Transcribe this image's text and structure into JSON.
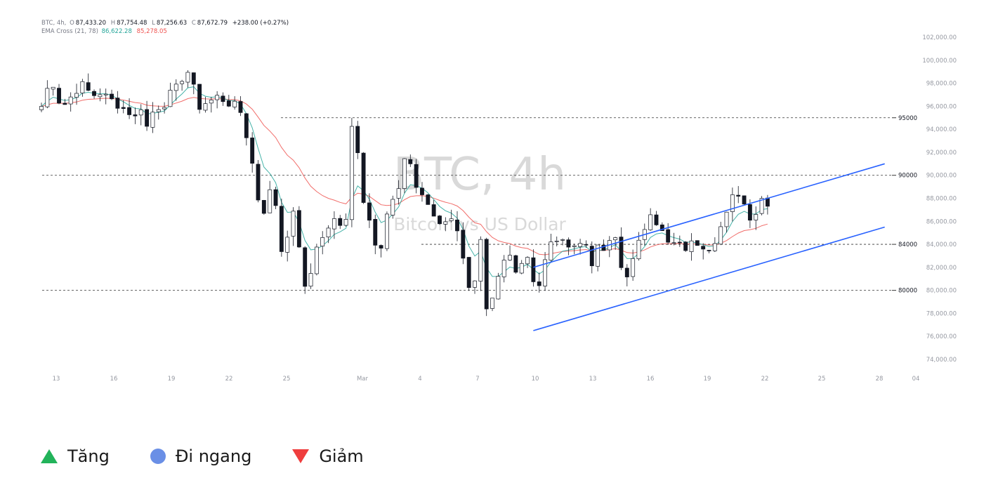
{
  "header": {
    "line1": {
      "symbol": "BTC, 4h,",
      "o_label": "O",
      "o": "87,433.20",
      "h_label": "H",
      "h": "87,754.48",
      "l_label": "L",
      "l": "87,256.63",
      "c_label": "C",
      "c": "87,672.79",
      "change": "+238.00 (+0.27%)"
    },
    "line2": {
      "indicator": "EMA Cross (21, 78)",
      "ema_fast": "86,622.28",
      "ema_slow": "85,278.05"
    }
  },
  "watermark": {
    "main": "BTC, 4h",
    "sub": "Bitcoin vs US Dollar"
  },
  "colors": {
    "ema_fast": "#26a69a",
    "ema_slow": "#ef5350",
    "channel": "#2962ff",
    "candle": "#131722",
    "legend_up": "#22b35a",
    "legend_side": "#6a8fe6",
    "legend_down": "#ef3e3e"
  },
  "chart_data": {
    "type": "candlestick",
    "ylim": [
      74000,
      102000
    ],
    "y_ticks": [
      "102,000.00",
      "100,000.00",
      "98,000.00",
      "96,000.00",
      "94,000.00",
      "92,000.00",
      "90,000.00",
      "88,000.00",
      "86,000.00",
      "84,000.00",
      "82,000.00",
      "80,000.00",
      "78,000.00",
      "76,000.00",
      "74,000.00"
    ],
    "x_tick_labels": [
      "13",
      "16",
      "19",
      "22",
      "25",
      "Mar",
      "4",
      "7",
      "10",
      "13",
      "16",
      "19",
      "22",
      "25",
      "28",
      "04"
    ],
    "levels": [
      {
        "label": "95000",
        "value": 95000
      },
      {
        "label": "90000",
        "value": 90000
      },
      {
        "label": "84000",
        "value": 84000
      },
      {
        "label": "80000",
        "value": 80000
      }
    ],
    "close_path": [
      [
        0,
        96000
      ],
      [
        1,
        97500
      ],
      [
        2,
        98000
      ],
      [
        3,
        96500
      ],
      [
        4,
        96200
      ],
      [
        5,
        96800
      ],
      [
        6,
        97500
      ],
      [
        7,
        97800
      ],
      [
        8,
        97300
      ],
      [
        9,
        97000
      ],
      [
        10,
        97200
      ],
      [
        11,
        96800
      ],
      [
        12,
        96500
      ],
      [
        13,
        96200
      ],
      [
        14,
        95800
      ],
      [
        15,
        95500
      ],
      [
        16,
        95000
      ],
      [
        17,
        96000
      ],
      [
        18,
        94200
      ],
      [
        19,
        95500
      ],
      [
        20,
        96000
      ],
      [
        21,
        96300
      ],
      [
        22,
        97000
      ],
      [
        23,
        97500
      ],
      [
        24,
        98500
      ],
      [
        25,
        99000
      ],
      [
        26,
        97500
      ],
      [
        27,
        96000
      ],
      [
        28,
        96300
      ],
      [
        29,
        96500
      ],
      [
        30,
        96800
      ],
      [
        31,
        96600
      ],
      [
        32,
        96300
      ],
      [
        33,
        96000
      ],
      [
        34,
        95500
      ],
      [
        35,
        93500
      ],
      [
        36,
        91000
      ],
      [
        37,
        88000
      ],
      [
        38,
        87000
      ],
      [
        39,
        88500
      ],
      [
        40,
        87500
      ],
      [
        41,
        83500
      ],
      [
        42,
        85000
      ],
      [
        43,
        86500
      ],
      [
        44,
        84000
      ],
      [
        45,
        80000
      ],
      [
        46,
        81500
      ],
      [
        47,
        84000
      ],
      [
        48,
        84500
      ],
      [
        49,
        85500
      ],
      [
        50,
        86000
      ],
      [
        51,
        85500
      ],
      [
        52,
        86500
      ],
      [
        53,
        94500
      ],
      [
        54,
        92000
      ],
      [
        55,
        88000
      ],
      [
        56,
        86500
      ],
      [
        57,
        84000
      ],
      [
        58,
        83500
      ],
      [
        59,
        86500
      ],
      [
        60,
        87500
      ],
      [
        61,
        89000
      ],
      [
        62,
        91500
      ],
      [
        63,
        91000
      ],
      [
        64,
        89000
      ],
      [
        65,
        88000
      ],
      [
        66,
        87500
      ],
      [
        67,
        86500
      ],
      [
        68,
        86000
      ],
      [
        69,
        86200
      ],
      [
        70,
        86000
      ],
      [
        71,
        85500
      ],
      [
        72,
        83000
      ],
      [
        73,
        80000
      ],
      [
        74,
        80500
      ],
      [
        75,
        84000
      ],
      [
        76,
        78000
      ],
      [
        77,
        79000
      ],
      [
        78,
        81000
      ],
      [
        79,
        82500
      ],
      [
        80,
        83000
      ],
      [
        81,
        82000
      ],
      [
        82,
        82500
      ],
      [
        83,
        83000
      ],
      [
        84,
        81000
      ],
      [
        85,
        80500
      ],
      [
        86,
        82500
      ],
      [
        87,
        84000
      ],
      [
        88,
        84500
      ],
      [
        89,
        84000
      ],
      [
        90,
        84200
      ],
      [
        91,
        84000
      ],
      [
        92,
        84000
      ],
      [
        93,
        84000
      ],
      [
        94,
        82500
      ],
      [
        95,
        83500
      ],
      [
        96,
        83500
      ],
      [
        97,
        84000
      ],
      [
        98,
        84500
      ],
      [
        99,
        82000
      ],
      [
        100,
        81500
      ],
      [
        101,
        82500
      ],
      [
        102,
        84000
      ],
      [
        103,
        85500
      ],
      [
        104,
        87000
      ],
      [
        105,
        86000
      ],
      [
        106,
        85000
      ],
      [
        107,
        84000
      ],
      [
        108,
        84000
      ],
      [
        109,
        83800
      ],
      [
        110,
        83700
      ],
      [
        111,
        84000
      ],
      [
        112,
        84200
      ],
      [
        113,
        84000
      ],
      [
        114,
        83800
      ],
      [
        115,
        84500
      ],
      [
        116,
        85500
      ],
      [
        117,
        86500
      ],
      [
        118,
        88000
      ],
      [
        119,
        88500
      ],
      [
        120,
        87500
      ],
      [
        121,
        86500
      ],
      [
        122,
        86800
      ],
      [
        123,
        88000
      ],
      [
        124,
        87700
      ]
    ],
    "series": [
      {
        "name": "EMA Cross (21, 78)",
        "kind": "ema_fast",
        "value": "86,622.28"
      },
      {
        "name": "EMA Cross (21, 78)",
        "kind": "ema_slow",
        "value": "85,278.05"
      }
    ],
    "channel": {
      "upper": [
        [
          84,
          82000
        ],
        [
          144,
          91000
        ]
      ],
      "lower": [
        [
          84,
          76500
        ],
        [
          144,
          85500
        ]
      ]
    }
  },
  "legend": {
    "items": [
      {
        "label": "Tăng",
        "icon": "triangle-up-icon"
      },
      {
        "label": "Đi ngang",
        "icon": "circle-icon"
      },
      {
        "label": "Giảm",
        "icon": "triangle-down-icon"
      }
    ]
  }
}
